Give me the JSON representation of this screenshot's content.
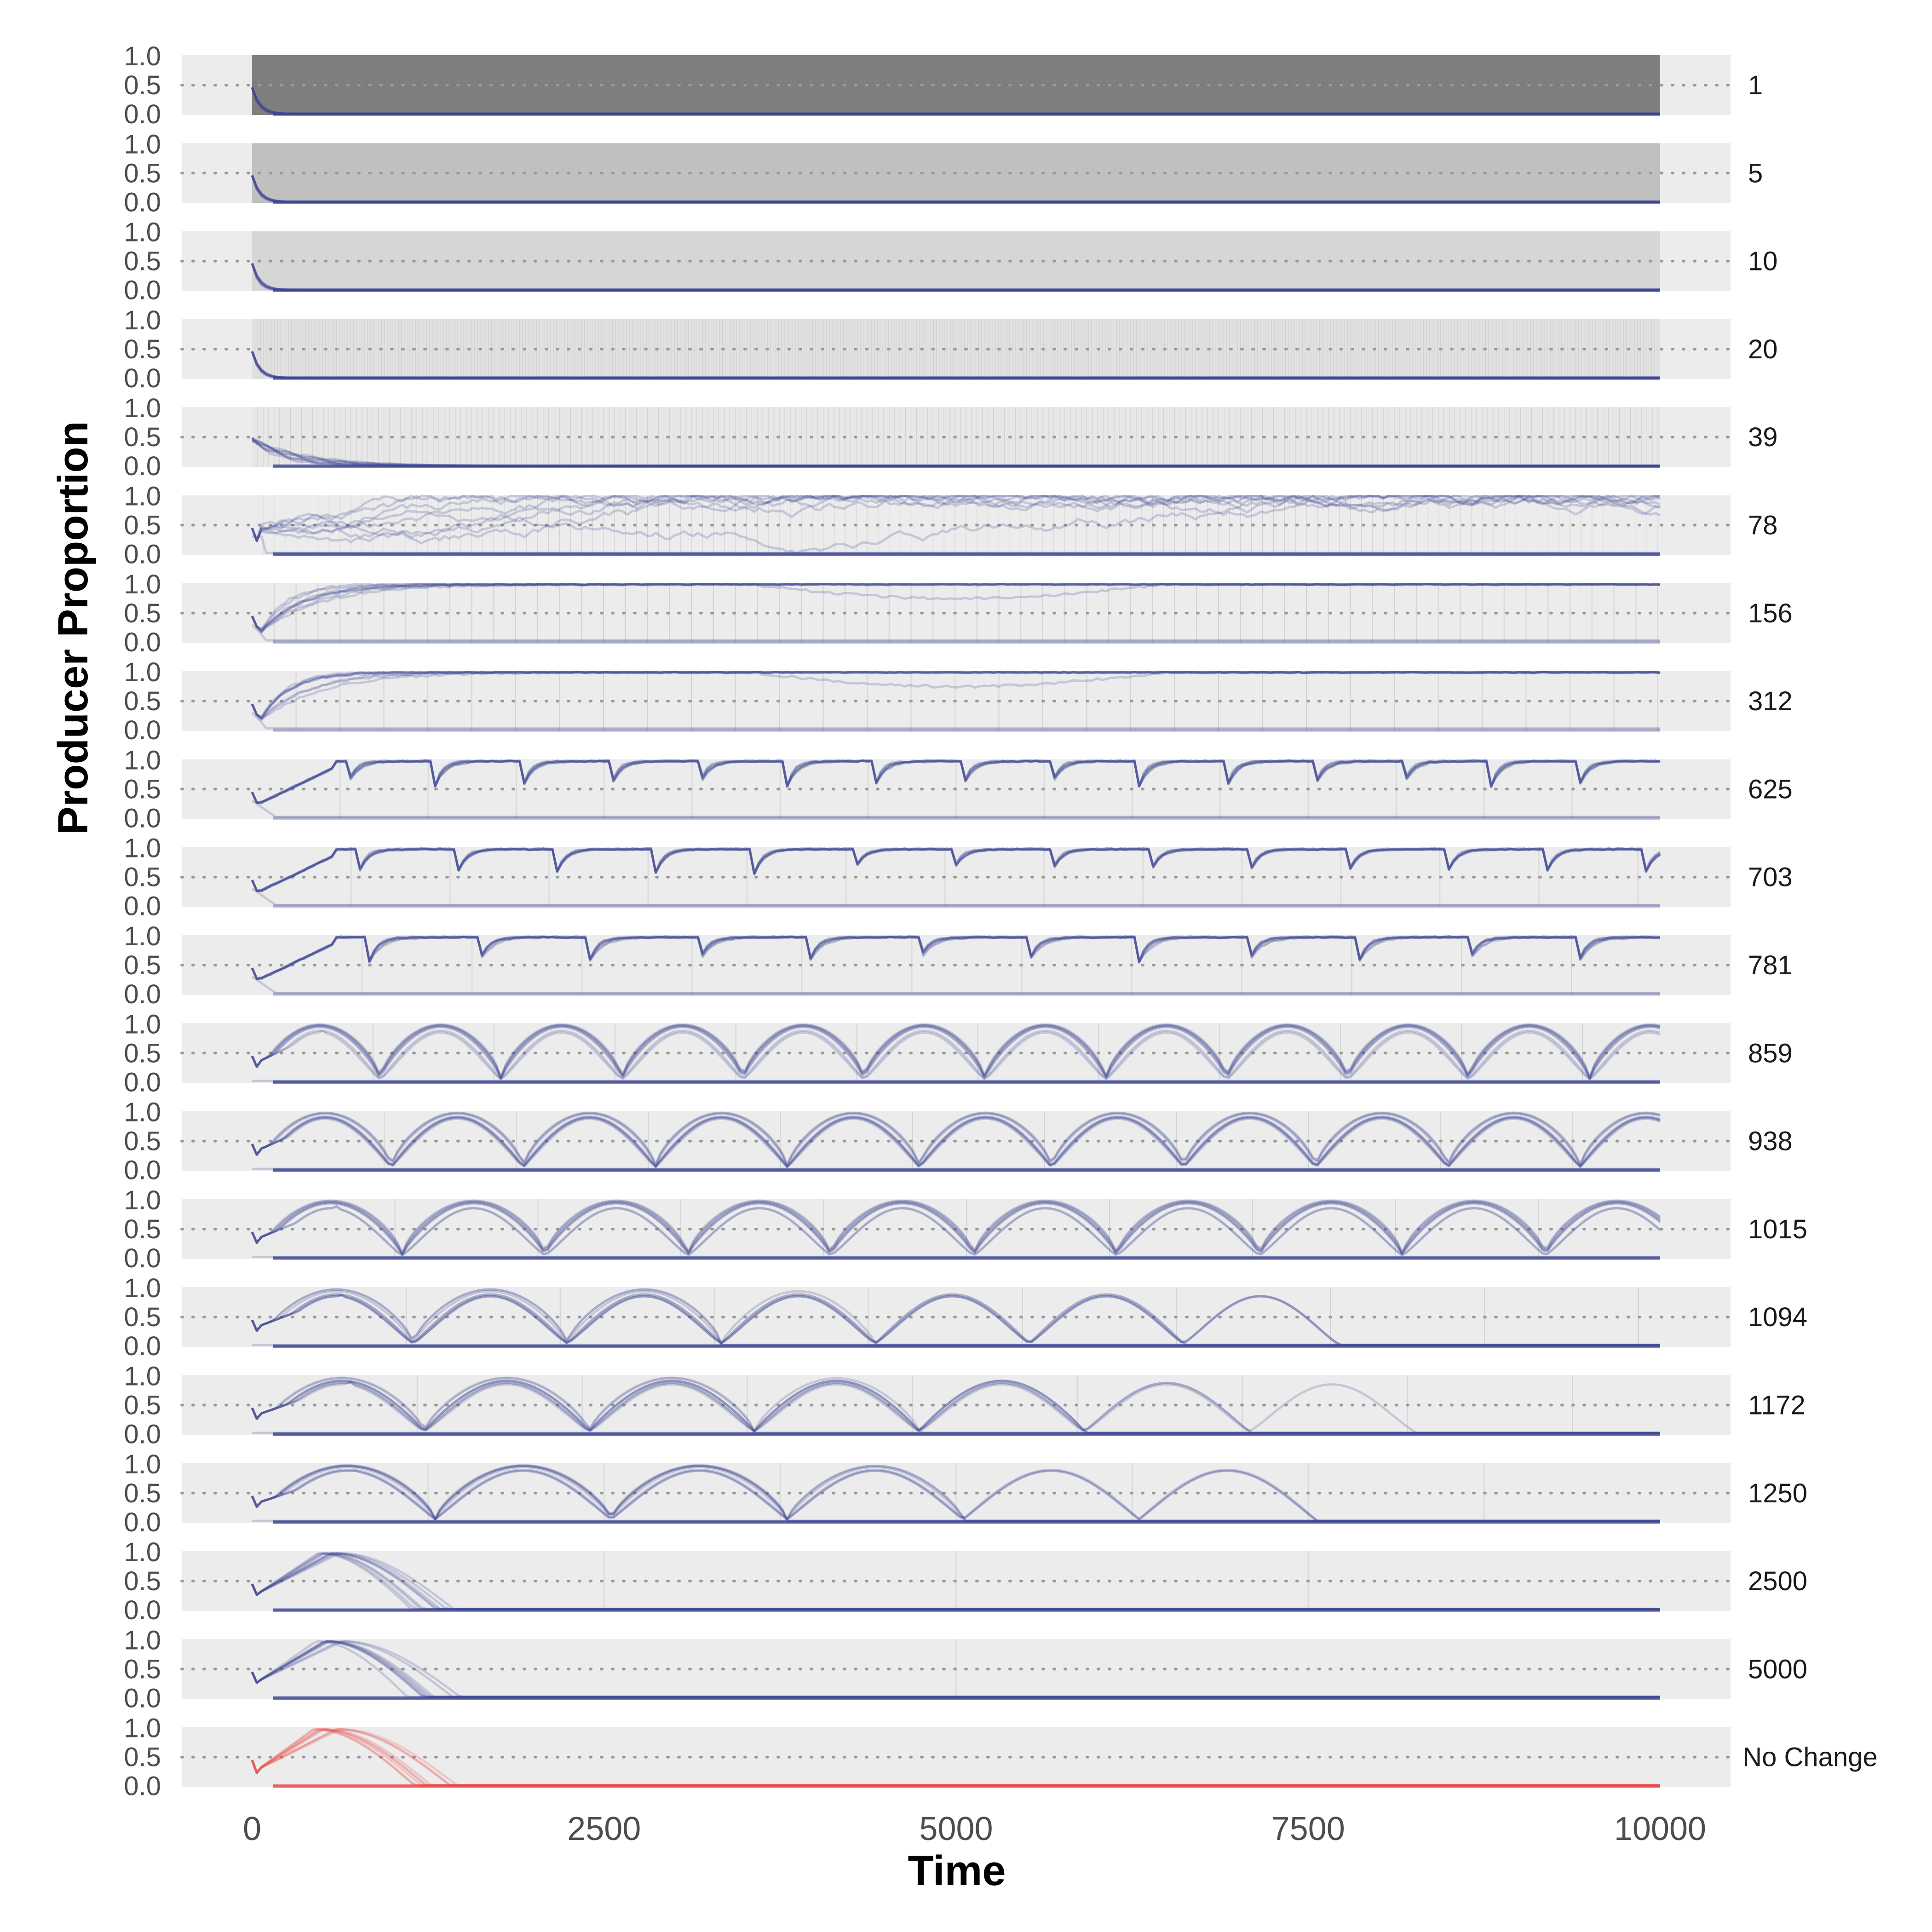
{
  "chart_data": {
    "type": "line",
    "title": "",
    "xlabel": "Time",
    "ylabel": "Producer Proportion",
    "xlim": [
      -500,
      10500
    ],
    "ylim": [
      0,
      1
    ],
    "x_ticks": [
      "0",
      "2500",
      "5000",
      "7500",
      "10000"
    ],
    "y_ticks": [
      "0.0",
      "0.5",
      "1.0"
    ],
    "reference_line_y": 0.5,
    "x_span": [
      0,
      10000
    ],
    "colors": {
      "series": "#3a4593",
      "no_change": "#e8484b",
      "panel_bg": "#ececec",
      "reference_line": "#9a9a9a",
      "background": "#ffffff"
    },
    "panels": [
      {
        "label": "1",
        "period": 1,
        "shade_fraction": 1.0,
        "behavior": "extinct"
      },
      {
        "label": "5",
        "period": 5,
        "shade_fraction": 0.4,
        "behavior": "extinct"
      },
      {
        "label": "10",
        "period": 10,
        "shade_fraction": 0.2,
        "behavior": "extinct"
      },
      {
        "label": "20",
        "period": 20,
        "shade_fraction": 0.1,
        "behavior": "extinct"
      },
      {
        "label": "39",
        "period": 39,
        "shade_fraction": 0.05,
        "behavior": "extinct"
      },
      {
        "label": "78",
        "period": 78,
        "shade_fraction": 0.0,
        "behavior": "noisy"
      },
      {
        "label": "156",
        "period": 156,
        "shade_fraction": 0.0,
        "behavior": "saturate"
      },
      {
        "label": "312",
        "period": 312,
        "shade_fraction": 0.0,
        "behavior": "saturate"
      },
      {
        "label": "625",
        "period": 625,
        "shade_fraction": 0.0,
        "behavior": "dips"
      },
      {
        "label": "703",
        "period": 703,
        "shade_fraction": 0.0,
        "behavior": "dips"
      },
      {
        "label": "781",
        "period": 781,
        "shade_fraction": 0.0,
        "behavior": "dips"
      },
      {
        "label": "859",
        "period": 859,
        "shade_fraction": 0.0,
        "behavior": "arcs"
      },
      {
        "label": "938",
        "period": 938,
        "shade_fraction": 0.0,
        "behavior": "arcs"
      },
      {
        "label": "1015",
        "period": 1015,
        "shade_fraction": 0.0,
        "behavior": "arcs"
      },
      {
        "label": "1094",
        "period": 1094,
        "shade_fraction": 0.0,
        "behavior": "arcs"
      },
      {
        "label": "1172",
        "period": 1172,
        "shade_fraction": 0.0,
        "behavior": "arcs"
      },
      {
        "label": "1250",
        "period": 1250,
        "shade_fraction": 0.0,
        "behavior": "arcs"
      },
      {
        "label": "2500",
        "period": 2500,
        "shade_fraction": 0.0,
        "behavior": "single"
      },
      {
        "label": "5000",
        "period": 5000,
        "shade_fraction": 0.0,
        "behavior": "single"
      },
      {
        "label": "No Change",
        "period": 0,
        "shade_fraction": 0.0,
        "behavior": "nochange"
      }
    ]
  }
}
